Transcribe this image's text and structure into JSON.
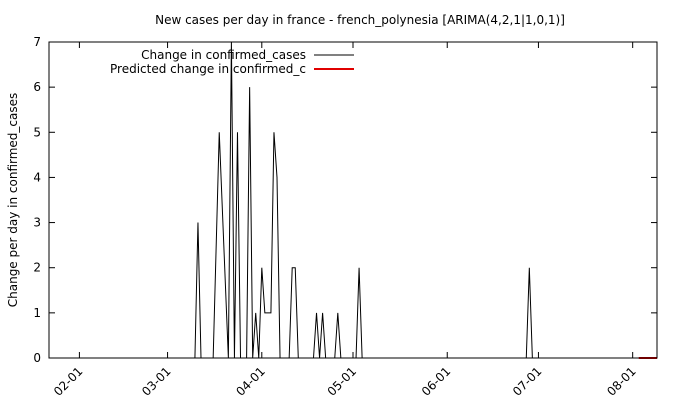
{
  "chart_data": {
    "type": "line",
    "title": "New cases per day in france - french_polynesia [ARIMA(4,2,1|1,0,1)]",
    "xlabel": "",
    "ylabel": "Change per day in confirmed_cases",
    "x_start": "2020-01-22",
    "xlim": [
      "2020-01-22",
      "2020-08-09"
    ],
    "ylim": [
      0,
      7
    ],
    "x_ticks": [
      {
        "label": "02-01",
        "date": "2020-02-01"
      },
      {
        "label": "03-01",
        "date": "2020-03-01"
      },
      {
        "label": "04-01",
        "date": "2020-04-01"
      },
      {
        "label": "05-01",
        "date": "2020-05-01"
      },
      {
        "label": "06-01",
        "date": "2020-06-01"
      },
      {
        "label": "07-01",
        "date": "2020-07-01"
      },
      {
        "label": "08-01",
        "date": "2020-08-01"
      }
    ],
    "y_ticks": [
      0,
      1,
      2,
      3,
      4,
      5,
      6,
      7
    ],
    "grid": false,
    "legend_position": "top-left",
    "series": [
      {
        "name": "Change in confirmed_cases",
        "color": "#000000",
        "points": [
          [
            "2020-01-22",
            0
          ],
          [
            "2020-03-10",
            0
          ],
          [
            "2020-03-11",
            3
          ],
          [
            "2020-03-12",
            0
          ],
          [
            "2020-03-16",
            0
          ],
          [
            "2020-03-18",
            5
          ],
          [
            "2020-03-21",
            0
          ],
          [
            "2020-03-22",
            7
          ],
          [
            "2020-03-23",
            0
          ],
          [
            "2020-03-24",
            5
          ],
          [
            "2020-03-25",
            0
          ],
          [
            "2020-03-27",
            0
          ],
          [
            "2020-03-28",
            6
          ],
          [
            "2020-03-29",
            0
          ],
          [
            "2020-03-30",
            1
          ],
          [
            "2020-03-31",
            0
          ],
          [
            "2020-04-01",
            2
          ],
          [
            "2020-04-02",
            1
          ],
          [
            "2020-04-04",
            1
          ],
          [
            "2020-04-05",
            5
          ],
          [
            "2020-04-06",
            4
          ],
          [
            "2020-04-07",
            0
          ],
          [
            "2020-04-10",
            0
          ],
          [
            "2020-04-11",
            2
          ],
          [
            "2020-04-12",
            2
          ],
          [
            "2020-04-13",
            0
          ],
          [
            "2020-04-18",
            0
          ],
          [
            "2020-04-19",
            1
          ],
          [
            "2020-04-20",
            0
          ],
          [
            "2020-04-21",
            1
          ],
          [
            "2020-04-22",
            0
          ],
          [
            "2020-04-25",
            0
          ],
          [
            "2020-04-26",
            1
          ],
          [
            "2020-04-27",
            0
          ],
          [
            "2020-05-02",
            0
          ],
          [
            "2020-05-03",
            2
          ],
          [
            "2020-05-04",
            0
          ],
          [
            "2020-06-27",
            0
          ],
          [
            "2020-06-28",
            2
          ],
          [
            "2020-06-29",
            0
          ],
          [
            "2020-08-03",
            0
          ]
        ]
      },
      {
        "name": "Predicted change in confirmed_c",
        "color": "#e00000",
        "points": [
          [
            "2020-08-03",
            0
          ],
          [
            "2020-08-09",
            0
          ]
        ]
      }
    ]
  }
}
